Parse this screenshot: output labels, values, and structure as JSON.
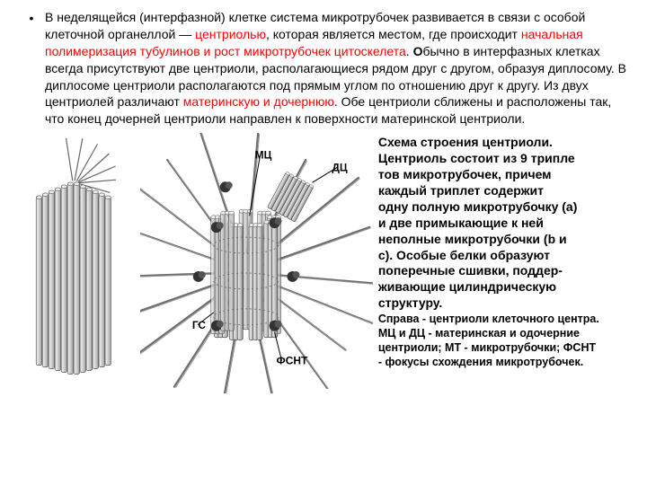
{
  "para": {
    "segments": [
      {
        "text": "В неделящейся (интерфазной) клетке система микротрубочек развивается в связи с особой клеточной органеллой — ",
        "red": false
      },
      {
        "text": "центриолью",
        "red": true
      },
      {
        "text": ", которая является местом, где происходит ",
        "red": false
      },
      {
        "text": "начальная полимеризация тубулинов и рост микротрубочек цитоскелета",
        "red": true
      },
      {
        "text": ". ",
        "red": false
      },
      {
        "text": "О",
        "red": false,
        "bold": true
      },
      {
        "text": "бычно в интерфазных клетках всегда присутствуют две центриоли, располагающиеся рядом друг с другом, образуя диплосому. В диплосоме центриоли располагаются под прямым углом по отношению друг к другу. Из двух центриолей различают ",
        "red": false
      },
      {
        "text": "материнскую и дочернюю",
        "red": true
      },
      {
        "text": ". Обе центриоли сближены и расположены так, что конец дочерней центриоли направлен к поверхности материнской центриоли.",
        "red": false
      }
    ]
  },
  "bullet": "•",
  "caption": {
    "lines": [
      "Схема строения центриоли.",
      "Центриоль состоит из 9 трипле",
      "тов микротрубочек, причем",
      "каждый триплет содержит",
      "одну полную микротрубочку (а)",
      "и две примыкающие к ней",
      "неполные микротрубочки (b и",
      "с). Особые белки образуют",
      "поперечные сшивки, поддер-",
      "живающие цилиндрическую",
      "структуру.",
      "Справа - центриоли клеточного центра.",
      "МЦ и ДЦ - материнская и одочерние",
      "центриоли; МТ - микротрубочки; ФСНТ",
      "- фокусы схождения микротрубочек."
    ]
  },
  "fig1_labels": [],
  "fig2_labels": {
    "mc": "МЦ",
    "dc": "ДЦ",
    "fsnt": "ФСНТ",
    "gc": "ГС"
  },
  "colors": {
    "text": "#000000",
    "red": "#ff0000",
    "background": "#ffffff",
    "figure_stroke": "#444444",
    "figure_fill": "#e8e8e8",
    "figure_dark": "#888888"
  }
}
